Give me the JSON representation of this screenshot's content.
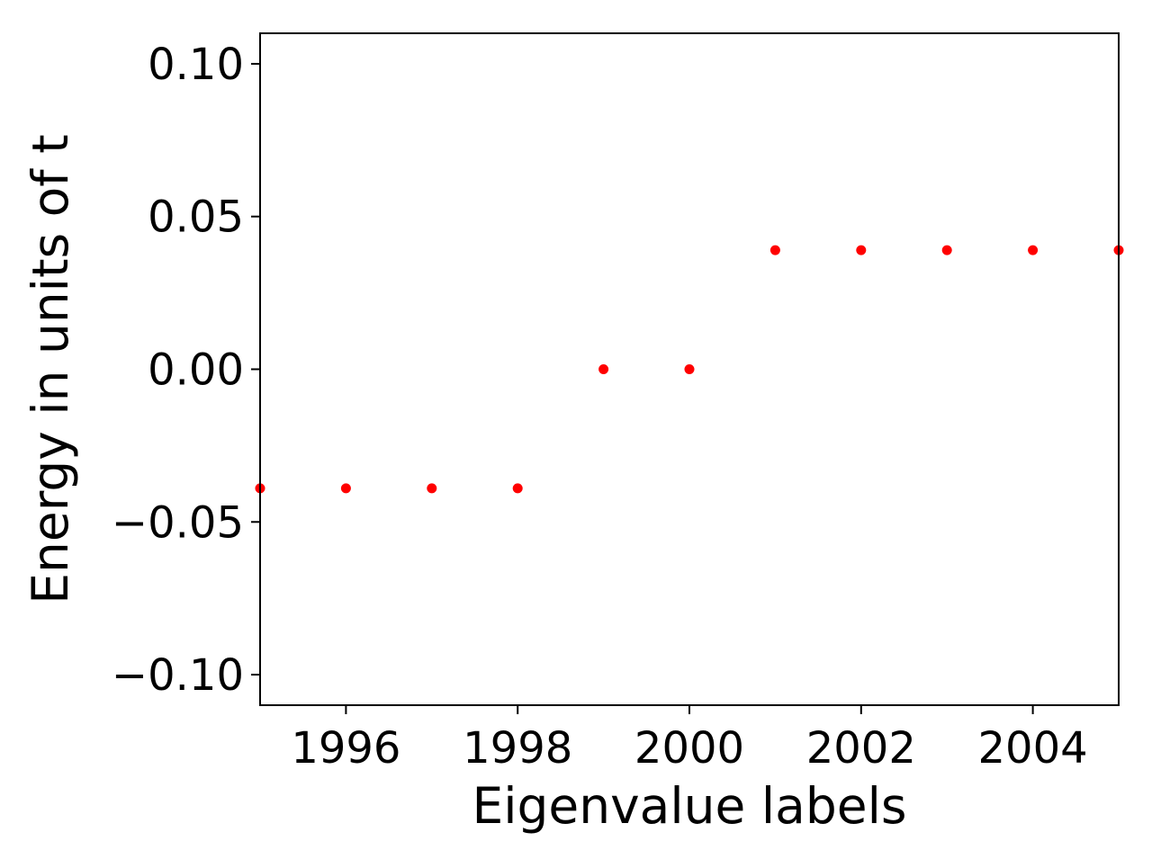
{
  "chart_data": {
    "type": "scatter",
    "title": "",
    "xlabel": "Eigenvalue labels",
    "ylabel": "Energy in units of t",
    "xlim": [
      1995,
      2005
    ],
    "ylim": [
      -0.11,
      0.11
    ],
    "grid": false,
    "x_ticks": [
      1996,
      1998,
      2000,
      2002,
      2004
    ],
    "x_tick_labels": [
      "1996",
      "1998",
      "2000",
      "2002",
      "2004"
    ],
    "y_ticks": [
      -0.1,
      -0.05,
      0.0,
      0.05,
      0.1
    ],
    "y_tick_labels": [
      "−0.10",
      "−0.05",
      "0.00",
      "0.05",
      "0.10"
    ],
    "series": [
      {
        "color": "#ff0000",
        "x": [
          1995,
          1996,
          1997,
          1998,
          1999,
          2000,
          2001,
          2002,
          2003,
          2004,
          2005
        ],
        "y": [
          -0.039,
          -0.039,
          -0.039,
          -0.039,
          0.0,
          0.0,
          0.039,
          0.039,
          0.039,
          0.039,
          0.039
        ]
      }
    ]
  }
}
